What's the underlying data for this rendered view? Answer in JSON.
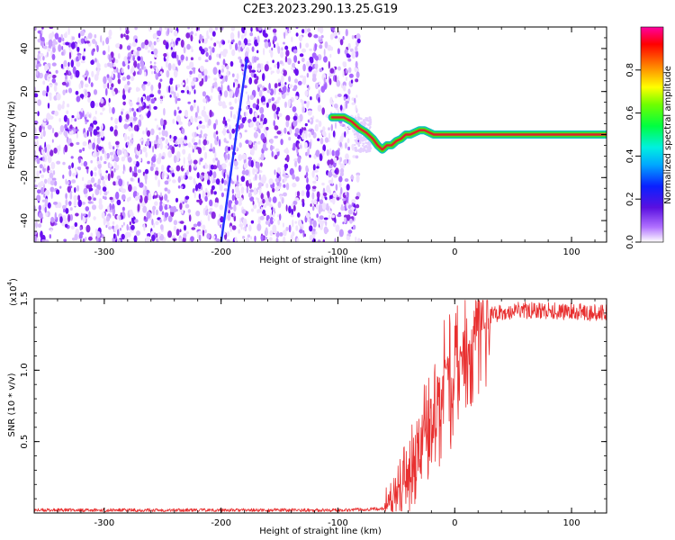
{
  "title": "C2E3.2023.290.13.25.G19",
  "colors": {
    "snr_line": "#e83030",
    "spectrum_purple": "#8a2be2",
    "trace_core": "#e0202a"
  },
  "chart_data": [
    {
      "type": "heatmap",
      "xlabel": "Height of straight line (km)",
      "ylabel": "Frequency (Hz)",
      "xlim": [
        -360,
        130
      ],
      "ylim": [
        -50,
        50
      ],
      "x_ticks": [
        -300,
        -200,
        -100,
        0,
        100
      ],
      "y_ticks": [
        -40,
        -20,
        0,
        20,
        40
      ],
      "noise_region_x": [
        -360,
        -82
      ],
      "tracking_trace": {
        "x": [
          -105,
          -95,
          -88,
          -82,
          -76,
          -70,
          -66,
          -62,
          -58,
          -54,
          -50,
          -46,
          -42,
          -38,
          -34,
          -30,
          -26,
          -22,
          -18,
          -14,
          -10,
          -5,
          0,
          130
        ],
        "y": [
          8,
          8,
          6,
          3,
          1,
          -2,
          -5,
          -7,
          -5,
          -5,
          -3,
          -2,
          0,
          0,
          1,
          2,
          2,
          1,
          0,
          0,
          0,
          0,
          0,
          0
        ]
      },
      "interference_line": {
        "x": [
          -200,
          -178
        ],
        "y": [
          -50,
          35
        ]
      },
      "colorbar": {
        "label": "Normalized spectral amplitude",
        "range": [
          0.0,
          1.0
        ],
        "ticks": [
          "0.0",
          "0.2",
          "0.4",
          "0.6",
          "0.8"
        ]
      }
    },
    {
      "type": "line",
      "xlabel": "Height of straight line (km)",
      "ylabel": "SNR (10 * v/v)",
      "multiplier_label": "(x10",
      "multiplier_exponent": "4",
      "xlim": [
        -360,
        130
      ],
      "ylim": [
        0,
        1.5
      ],
      "x_ticks": [
        -300,
        -200,
        -100,
        0,
        100
      ],
      "y_ticks": [
        "0.5",
        "1.0",
        "1.5"
      ],
      "series": [
        {
          "x": [
            -360,
            -300,
            -200,
            -100,
            -60,
            -50,
            -40,
            -30,
            -20,
            -10,
            0,
            10,
            20,
            30,
            50,
            70,
            100,
            130
          ],
          "values": [
            0.02,
            0.02,
            0.02,
            0.02,
            0.03,
            0.12,
            0.25,
            0.45,
            0.65,
            0.85,
            0.95,
            1.1,
            1.3,
            1.38,
            1.42,
            1.42,
            1.41,
            1.4
          ]
        }
      ]
    }
  ]
}
